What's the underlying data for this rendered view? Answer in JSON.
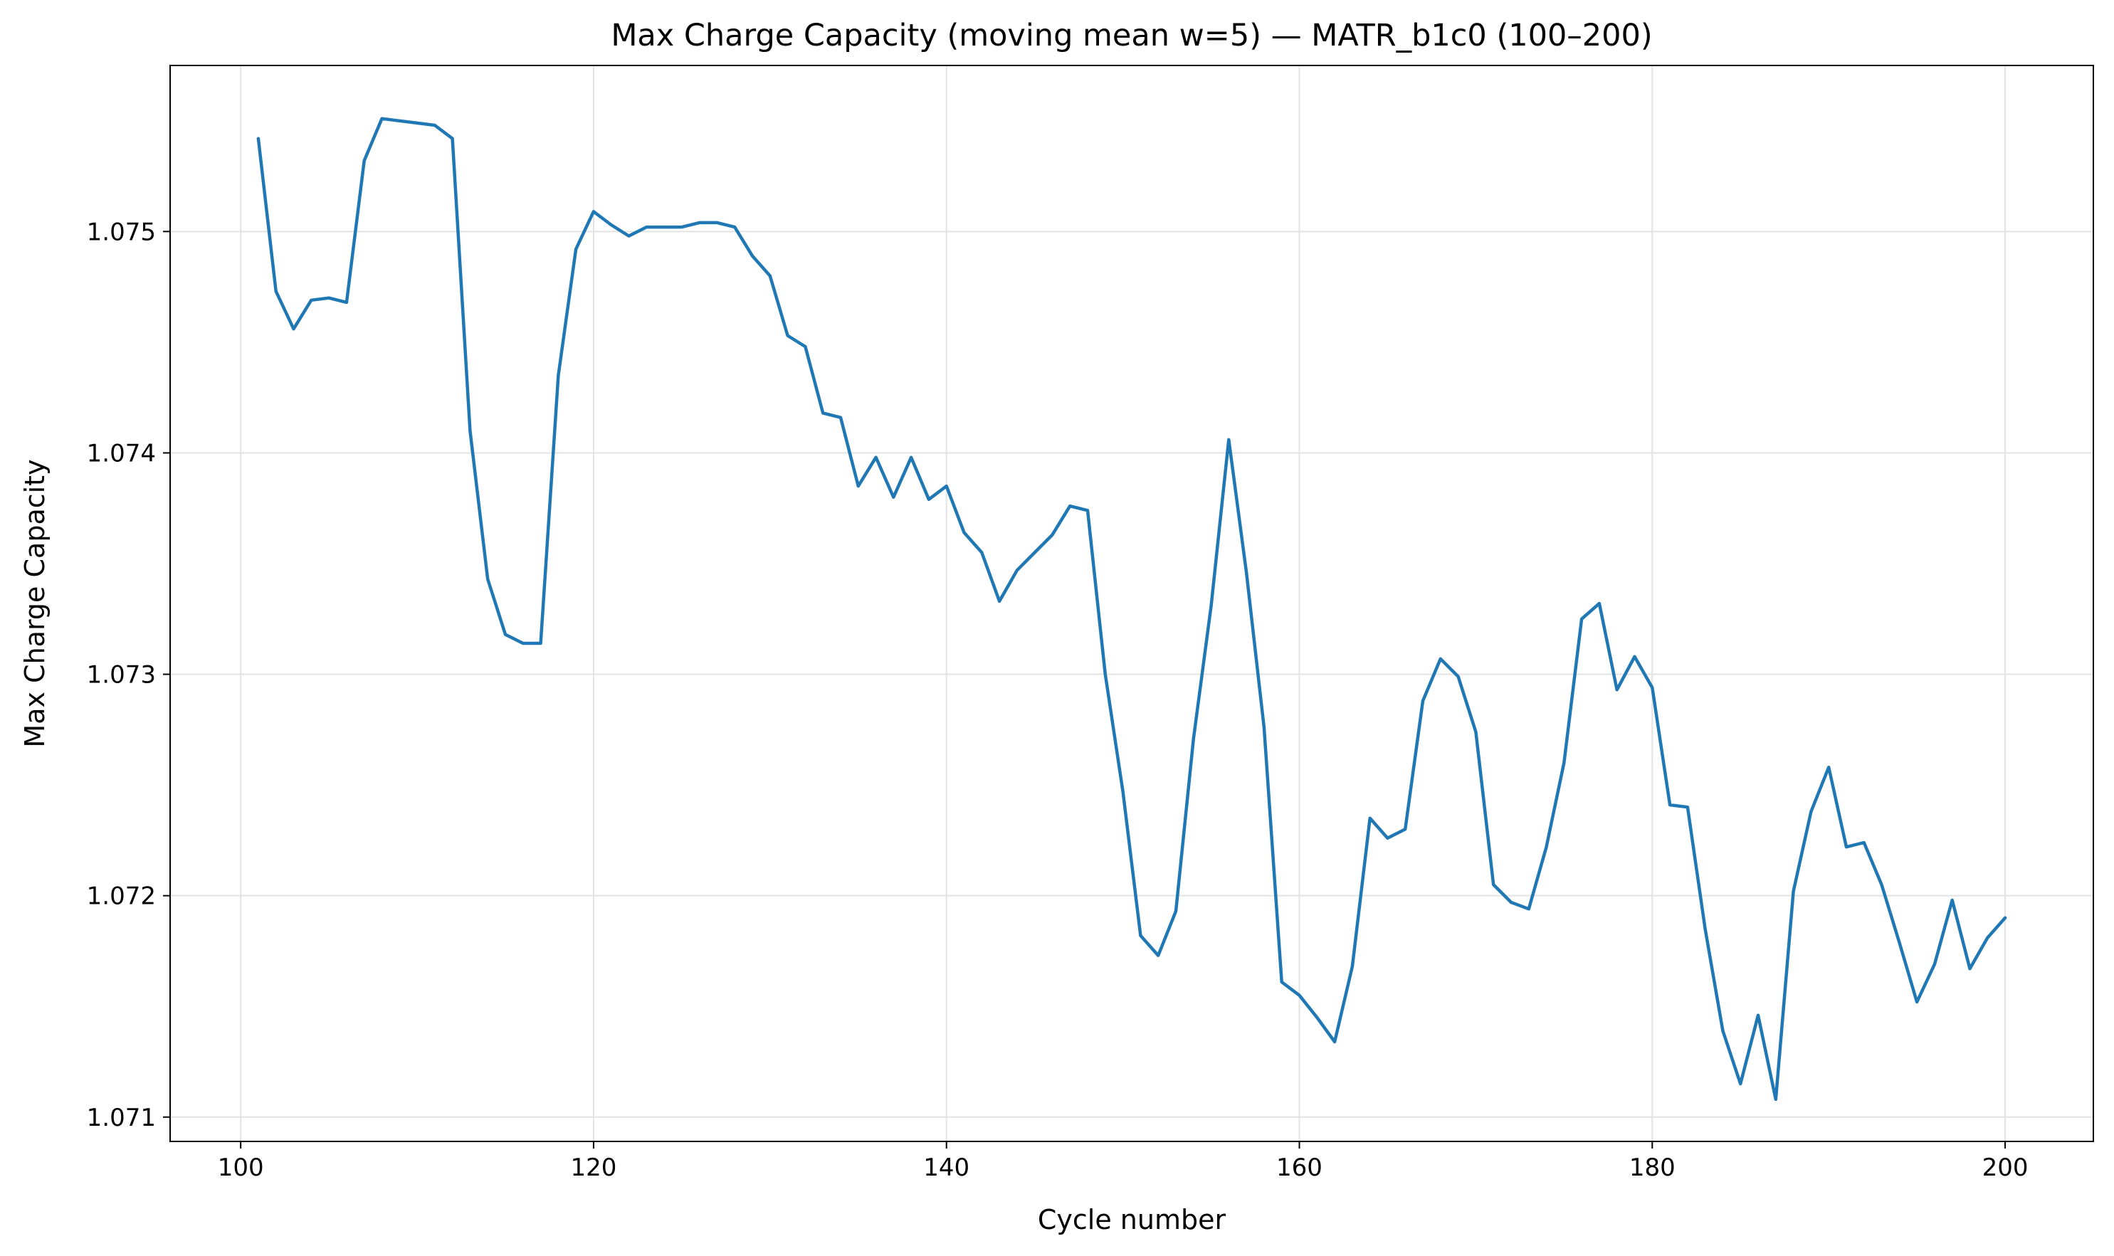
{
  "chart_data": {
    "type": "line",
    "title": "Max Charge Capacity (moving mean w=5) — MATR_b1c0 (100–200)",
    "xlabel": "Cycle number",
    "ylabel": "Max Charge Capacity",
    "xlim": [
      96,
      205
    ],
    "ylim": [
      1.07089,
      1.07575
    ],
    "grid": true,
    "line_color": "#1f77b4",
    "xticks": [
      100,
      120,
      140,
      160,
      180,
      200
    ],
    "xtick_labels": [
      "100",
      "120",
      "140",
      "160",
      "180",
      "200"
    ],
    "yticks": [
      1.071,
      1.072,
      1.073,
      1.074,
      1.075
    ],
    "ytick_labels": [
      "1.071",
      "1.072",
      "1.073",
      "1.074",
      "1.075"
    ],
    "x": [
      101,
      102,
      103,
      104,
      105,
      106,
      107,
      108,
      109,
      110,
      111,
      112,
      113,
      114,
      115,
      116,
      117,
      118,
      119,
      120,
      121,
      122,
      123,
      124,
      125,
      126,
      127,
      128,
      129,
      130,
      131,
      132,
      133,
      134,
      135,
      136,
      137,
      138,
      139,
      140,
      141,
      142,
      143,
      144,
      145,
      146,
      147,
      148,
      149,
      150,
      151,
      152,
      153,
      154,
      155,
      156,
      157,
      158,
      159,
      160,
      161,
      162,
      163,
      164,
      165,
      166,
      167,
      168,
      169,
      170,
      171,
      172,
      173,
      174,
      175,
      176,
      177,
      178,
      179,
      180,
      181,
      182,
      183,
      184,
      185,
      186,
      187,
      188,
      189,
      190,
      191,
      192,
      193,
      194,
      195,
      196,
      197,
      198,
      199,
      200
    ],
    "y": [
      1.07542,
      1.07473,
      1.07456,
      1.07469,
      1.0747,
      1.07468,
      1.07532,
      1.07551,
      1.0755,
      1.07549,
      1.07548,
      1.07542,
      1.0741,
      1.07343,
      1.07318,
      1.07314,
      1.07314,
      1.07435,
      1.07492,
      1.07509,
      1.07503,
      1.07498,
      1.07502,
      1.07502,
      1.07502,
      1.07504,
      1.07504,
      1.07502,
      1.07489,
      1.0748,
      1.07453,
      1.07448,
      1.07418,
      1.07416,
      1.07385,
      1.07398,
      1.0738,
      1.07398,
      1.07379,
      1.07385,
      1.07364,
      1.07355,
      1.07333,
      1.07347,
      1.07355,
      1.07363,
      1.07376,
      1.07374,
      1.073,
      1.07247,
      1.07182,
      1.07173,
      1.07193,
      1.07271,
      1.07331,
      1.07406,
      1.07346,
      1.07276,
      1.07161,
      1.07155,
      1.07145,
      1.07134,
      1.07168,
      1.07235,
      1.07226,
      1.0723,
      1.07288,
      1.07307,
      1.07299,
      1.07274,
      1.07205,
      1.07197,
      1.07194,
      1.07222,
      1.0726,
      1.07325,
      1.07332,
      1.07293,
      1.07308,
      1.07294,
      1.07241,
      1.0724,
      1.07185,
      1.07139,
      1.07115,
      1.07146,
      1.07108,
      1.07202,
      1.07238,
      1.07258,
      1.07222,
      1.07224,
      1.07205,
      1.07179,
      1.07152,
      1.07169,
      1.07198,
      1.07167,
      1.07181,
      1.0719
    ]
  }
}
